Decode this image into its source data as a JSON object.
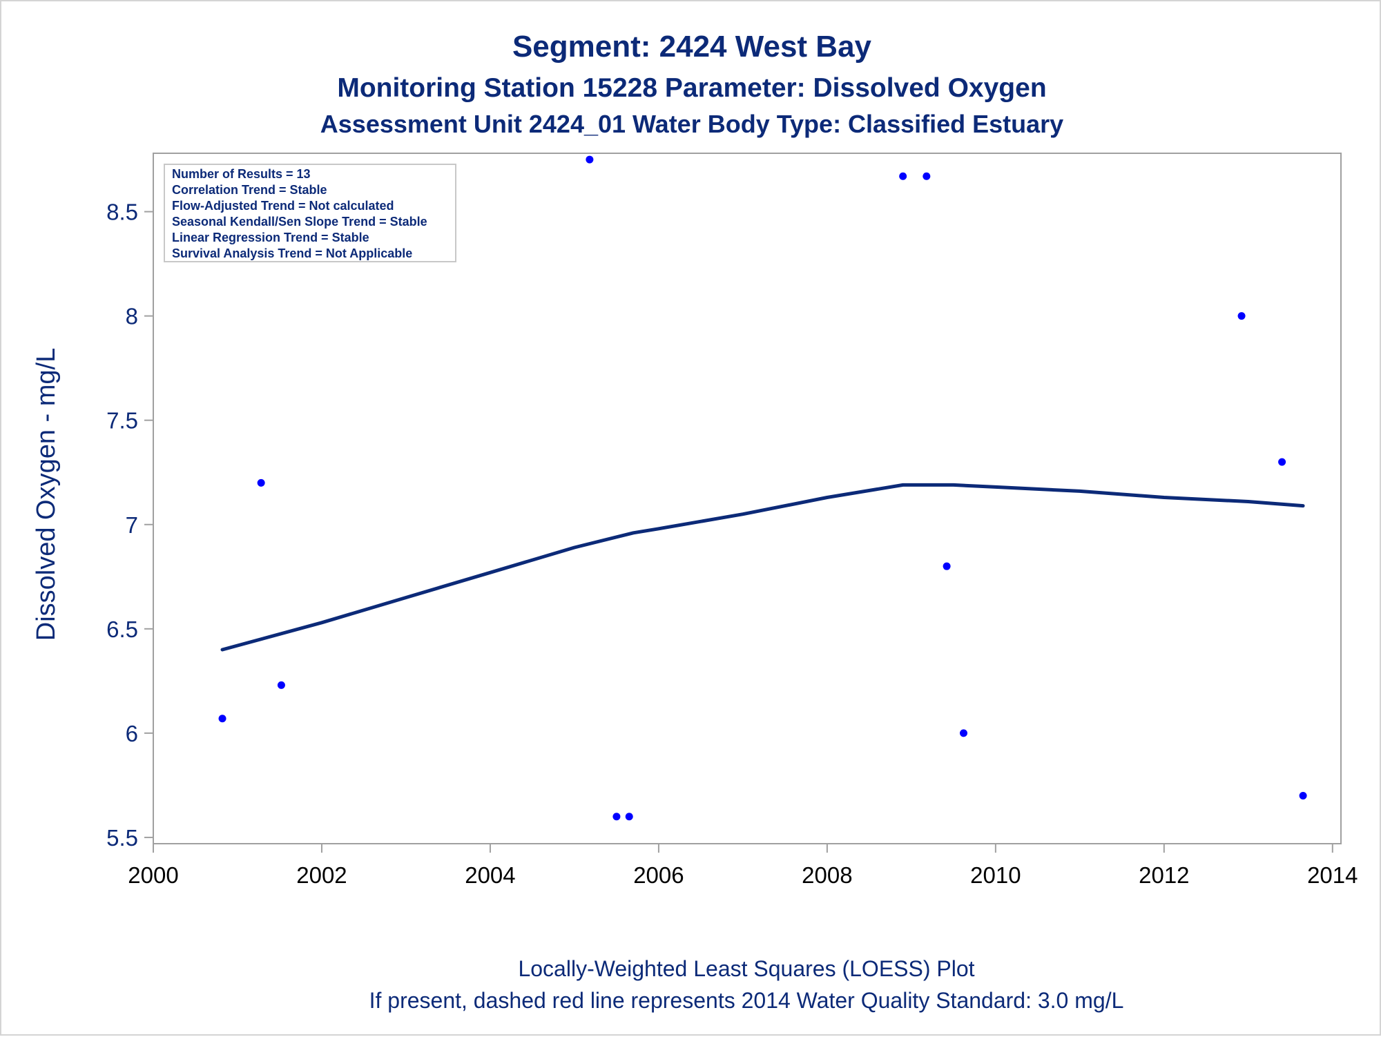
{
  "titles": {
    "line1": "Segment: 2424  West Bay",
    "line2": "Monitoring Station 15228 Parameter: Dissolved Oxygen",
    "line3": "Assessment Unit 2424_01   Water Body Type: Classified Estuary"
  },
  "stats_box": [
    "Number of Results = 13",
    "Correlation Trend = Stable",
    "Flow-Adjusted Trend = Not calculated",
    "Seasonal Kendall/Sen Slope Trend = Stable",
    "Linear Regression Trend = Stable",
    "Survival Analysis Trend = Not Applicable"
  ],
  "footnotes": {
    "line1": "Locally-Weighted Least Squares (LOESS) Plot",
    "line2": "If present, dashed red line represents 2014 Water Quality Standard: 3.0 mg/L"
  },
  "colors": {
    "points": "#0000ff",
    "loess": "#0c2a78",
    "text": "#0c2a78",
    "axis": "#a0a0a0"
  },
  "chart_data": {
    "type": "scatter",
    "title": "Segment: 2424  West Bay",
    "xlabel": "",
    "ylabel": "Dissolved Oxygen - mg/L",
    "xlim": [
      2000,
      2014.1
    ],
    "ylim": [
      5.47,
      8.78
    ],
    "xticks": [
      "2000",
      "2002",
      "2004",
      "2006",
      "2008",
      "2010",
      "2012",
      "2014"
    ],
    "yticks": [
      "5.5",
      "6",
      "6.5",
      "7",
      "7.5",
      "8",
      "8.5"
    ],
    "grid": false,
    "points": [
      {
        "x": 2000.82,
        "y": 6.07
      },
      {
        "x": 2001.28,
        "y": 7.2
      },
      {
        "x": 2001.52,
        "y": 6.23
      },
      {
        "x": 2005.18,
        "y": 8.75
      },
      {
        "x": 2005.5,
        "y": 5.6
      },
      {
        "x": 2005.65,
        "y": 5.6
      },
      {
        "x": 2008.9,
        "y": 8.67
      },
      {
        "x": 2009.18,
        "y": 8.67
      },
      {
        "x": 2009.42,
        "y": 6.8
      },
      {
        "x": 2009.62,
        "y": 6.0
      },
      {
        "x": 2012.92,
        "y": 8.0
      },
      {
        "x": 2013.4,
        "y": 7.3
      },
      {
        "x": 2013.65,
        "y": 5.7
      }
    ],
    "loess": [
      {
        "x": 2000.82,
        "y": 6.4
      },
      {
        "x": 2002.0,
        "y": 6.53
      },
      {
        "x": 2003.0,
        "y": 6.65
      },
      {
        "x": 2004.0,
        "y": 6.77
      },
      {
        "x": 2005.0,
        "y": 6.89
      },
      {
        "x": 2005.7,
        "y": 6.96
      },
      {
        "x": 2006.0,
        "y": 6.98
      },
      {
        "x": 2007.0,
        "y": 7.05
      },
      {
        "x": 2008.0,
        "y": 7.13
      },
      {
        "x": 2008.9,
        "y": 7.19
      },
      {
        "x": 2009.5,
        "y": 7.19
      },
      {
        "x": 2010.0,
        "y": 7.18
      },
      {
        "x": 2011.0,
        "y": 7.16
      },
      {
        "x": 2012.0,
        "y": 7.13
      },
      {
        "x": 2013.0,
        "y": 7.11
      },
      {
        "x": 2013.65,
        "y": 7.09
      }
    ]
  }
}
